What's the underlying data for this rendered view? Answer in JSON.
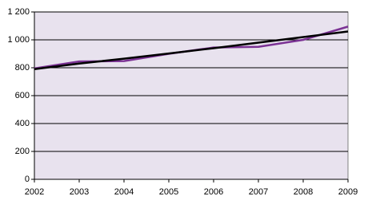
{
  "chart_data": {
    "type": "line",
    "x": [
      2002,
      2003,
      2004,
      2005,
      2006,
      2007,
      2008,
      2009
    ],
    "series": [
      {
        "color": "#7b3294",
        "values": [
          795,
          845,
          848,
          900,
          945,
          950,
          1000,
          1095
        ]
      },
      {
        "color": "#000000",
        "values": [
          790,
          830,
          865,
          902,
          940,
          980,
          1020,
          1060
        ]
      }
    ],
    "xlim": [
      2002,
      2009
    ],
    "xticks": [
      2002,
      2003,
      2004,
      2005,
      2006,
      2007,
      2008,
      2009
    ],
    "ylim": [
      0,
      1200
    ],
    "yticks": [
      0,
      200,
      400,
      600,
      800,
      {
        "value": 1000,
        "label": "1 000"
      },
      {
        "value": 1200,
        "label": "1 200"
      }
    ],
    "grid": true,
    "background": "#e8e2ee"
  }
}
